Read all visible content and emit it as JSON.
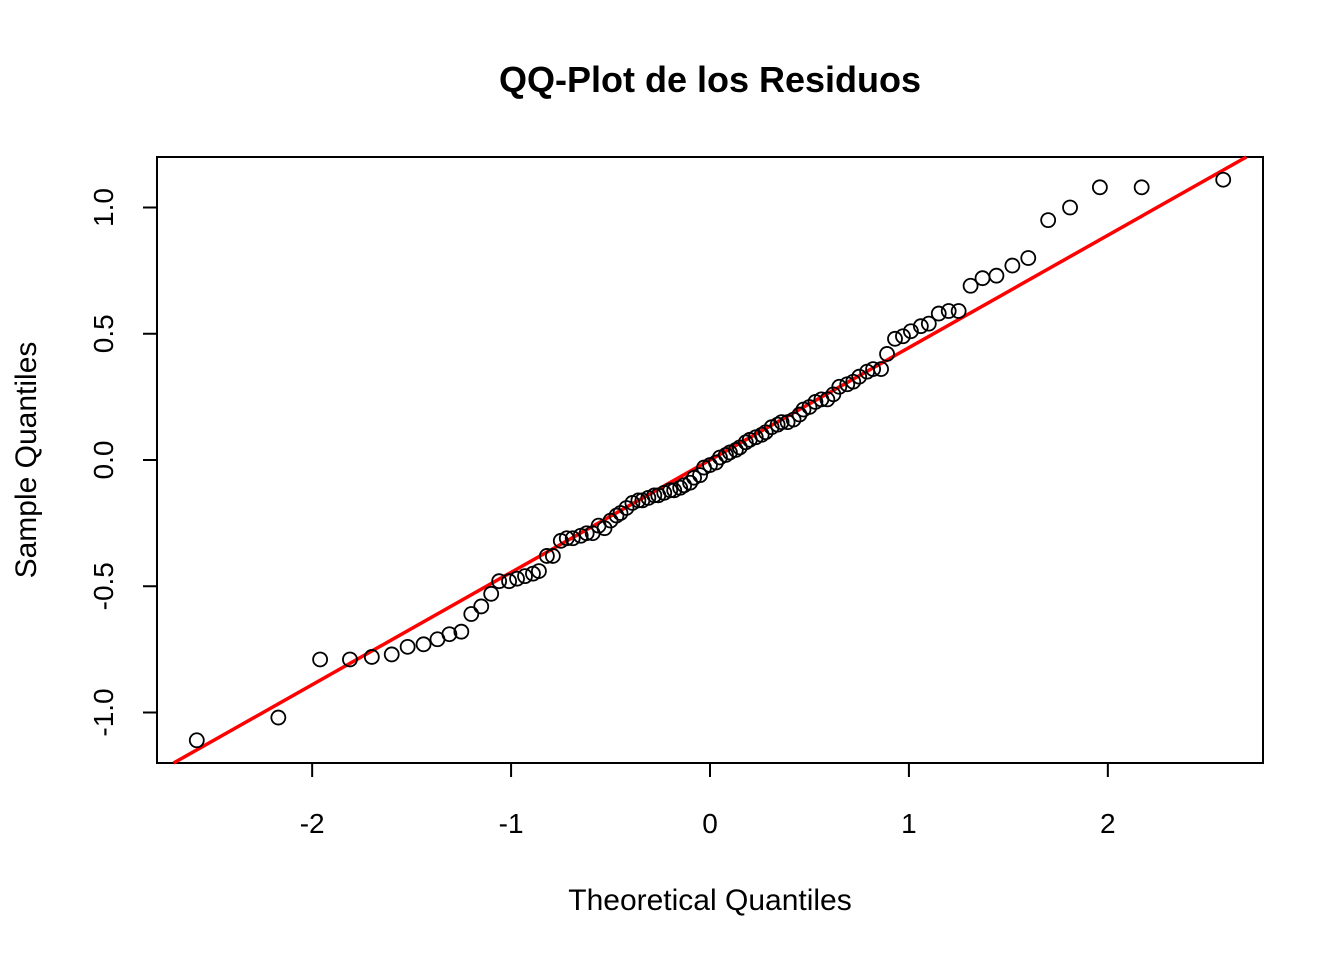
{
  "chart_data": {
    "type": "scatter",
    "title": "QQ-Plot de los Residuos",
    "xlabel": "Theoretical Quantiles",
    "ylabel": "Sample Quantiles",
    "xlim": [
      -2.78,
      2.78
    ],
    "ylim": [
      -1.2,
      1.2
    ],
    "x_ticks": [
      -2,
      -1,
      0,
      1,
      2
    ],
    "y_ticks": [
      -1.0,
      -0.5,
      0.0,
      0.5,
      1.0
    ],
    "x_tick_labels": [
      "-2",
      "-1",
      "0",
      "1",
      "2"
    ],
    "y_tick_labels": [
      "-1.0",
      "-0.5",
      "0.0",
      "0.5",
      "1.0"
    ],
    "grid": false,
    "series": [
      {
        "points": [
          [
            -2.58,
            -1.11
          ],
          [
            -2.17,
            -1.02
          ],
          [
            -1.96,
            -0.79
          ],
          [
            -1.81,
            -0.79
          ],
          [
            -1.7,
            -0.78
          ],
          [
            -1.6,
            -0.77
          ],
          [
            -1.52,
            -0.74
          ],
          [
            -1.44,
            -0.73
          ],
          [
            -1.37,
            -0.71
          ],
          [
            -1.31,
            -0.69
          ],
          [
            -1.25,
            -0.68
          ],
          [
            -1.2,
            -0.61
          ],
          [
            -1.15,
            -0.58
          ],
          [
            -1.1,
            -0.53
          ],
          [
            -1.06,
            -0.48
          ],
          [
            -1.01,
            -0.48
          ],
          [
            -0.97,
            -0.47
          ],
          [
            -0.93,
            -0.46
          ],
          [
            -0.89,
            -0.45
          ],
          [
            -0.86,
            -0.44
          ],
          [
            -0.82,
            -0.38
          ],
          [
            -0.79,
            -0.38
          ],
          [
            -0.75,
            -0.32
          ],
          [
            -0.72,
            -0.31
          ],
          [
            -0.69,
            -0.31
          ],
          [
            -0.65,
            -0.3
          ],
          [
            -0.62,
            -0.29
          ],
          [
            -0.59,
            -0.29
          ],
          [
            -0.56,
            -0.26
          ],
          [
            -0.53,
            -0.27
          ],
          [
            -0.5,
            -0.24
          ],
          [
            -0.47,
            -0.22
          ],
          [
            -0.45,
            -0.21
          ],
          [
            -0.42,
            -0.19
          ],
          [
            -0.39,
            -0.17
          ],
          [
            -0.36,
            -0.16
          ],
          [
            -0.34,
            -0.16
          ],
          [
            -0.31,
            -0.15
          ],
          [
            -0.28,
            -0.14
          ],
          [
            -0.26,
            -0.14
          ],
          [
            -0.23,
            -0.13
          ],
          [
            -0.2,
            -0.12
          ],
          [
            -0.18,
            -0.12
          ],
          [
            -0.15,
            -0.11
          ],
          [
            -0.13,
            -0.1
          ],
          [
            -0.1,
            -0.09
          ],
          [
            -0.08,
            -0.07
          ],
          [
            -0.05,
            -0.06
          ],
          [
            -0.03,
            -0.03
          ],
          [
            0.0,
            -0.02
          ],
          [
            0.03,
            -0.01
          ],
          [
            0.05,
            0.01
          ],
          [
            0.08,
            0.02
          ],
          [
            0.1,
            0.03
          ],
          [
            0.13,
            0.04
          ],
          [
            0.15,
            0.05
          ],
          [
            0.18,
            0.07
          ],
          [
            0.2,
            0.08
          ],
          [
            0.23,
            0.09
          ],
          [
            0.26,
            0.1
          ],
          [
            0.28,
            0.11
          ],
          [
            0.31,
            0.13
          ],
          [
            0.34,
            0.14
          ],
          [
            0.36,
            0.15
          ],
          [
            0.39,
            0.15
          ],
          [
            0.42,
            0.16
          ],
          [
            0.45,
            0.18
          ],
          [
            0.47,
            0.2
          ],
          [
            0.5,
            0.21
          ],
          [
            0.53,
            0.23
          ],
          [
            0.56,
            0.24
          ],
          [
            0.59,
            0.24
          ],
          [
            0.62,
            0.26
          ],
          [
            0.65,
            0.29
          ],
          [
            0.69,
            0.3
          ],
          [
            0.72,
            0.31
          ],
          [
            0.75,
            0.33
          ],
          [
            0.79,
            0.35
          ],
          [
            0.82,
            0.36
          ],
          [
            0.86,
            0.36
          ],
          [
            0.89,
            0.42
          ],
          [
            0.93,
            0.48
          ],
          [
            0.97,
            0.49
          ],
          [
            1.01,
            0.51
          ],
          [
            1.06,
            0.53
          ],
          [
            1.1,
            0.54
          ],
          [
            1.15,
            0.58
          ],
          [
            1.2,
            0.59
          ],
          [
            1.25,
            0.59
          ],
          [
            1.31,
            0.69
          ],
          [
            1.37,
            0.72
          ],
          [
            1.44,
            0.73
          ],
          [
            1.52,
            0.77
          ],
          [
            1.6,
            0.8
          ],
          [
            1.7,
            0.95
          ],
          [
            1.81,
            1.0
          ],
          [
            1.96,
            1.08
          ],
          [
            2.17,
            1.08
          ],
          [
            2.58,
            1.11
          ]
        ]
      }
    ],
    "reference_line": {
      "intercept": 0.0,
      "slope": 0.445,
      "color": "#ff0000"
    },
    "point_style": "open-circle",
    "point_color": "#000000"
  }
}
